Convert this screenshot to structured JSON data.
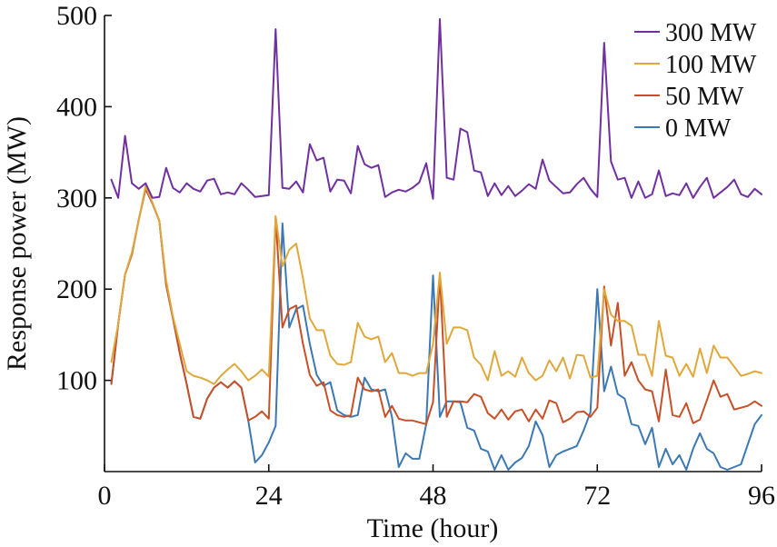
{
  "chart_data": {
    "type": "line",
    "title": "",
    "xlabel": "Time (hour)",
    "ylabel": "Response power (MW)",
    "xlim": [
      0,
      96
    ],
    "ylim": [
      0,
      500
    ],
    "xticks": [
      0,
      24,
      48,
      72,
      96
    ],
    "yticks": [
      100,
      200,
      300,
      400,
      500
    ],
    "grid": false,
    "legend_position": "top-right",
    "series": [
      {
        "name": "300 MW",
        "color": "#7030a0",
        "x": [
          1,
          2,
          3,
          4,
          5,
          6,
          7,
          8,
          9,
          10,
          11,
          12,
          13,
          14,
          15,
          16,
          17,
          18,
          19,
          20,
          21,
          22,
          23,
          24,
          25,
          26,
          27,
          28,
          29,
          30,
          31,
          32,
          33,
          34,
          35,
          36,
          37,
          38,
          39,
          40,
          41,
          42,
          43,
          44,
          45,
          46,
          47,
          48,
          49,
          50,
          51,
          52,
          53,
          54,
          55,
          56,
          57,
          58,
          59,
          60,
          61,
          62,
          63,
          64,
          65,
          66,
          67,
          68,
          69,
          70,
          71,
          72,
          73,
          74,
          75,
          76,
          77,
          78,
          79,
          80,
          81,
          82,
          83,
          84,
          85,
          86,
          87,
          88,
          89,
          90,
          91,
          92,
          93,
          94,
          95,
          96
        ],
        "values": [
          320,
          300,
          368,
          316,
          310,
          316,
          300,
          301,
          333,
          311,
          306,
          316,
          310,
          307,
          319,
          321,
          304,
          306,
          304,
          316,
          309,
          301,
          302,
          303,
          485,
          311,
          310,
          318,
          306,
          359,
          341,
          344,
          307,
          320,
          319,
          305,
          357,
          337,
          333,
          336,
          301,
          306,
          309,
          307,
          311,
          317,
          338,
          299,
          496,
          322,
          320,
          376,
          372,
          330,
          328,
          302,
          316,
          303,
          313,
          302,
          308,
          315,
          310,
          342,
          319,
          312,
          305,
          306,
          315,
          322,
          310,
          301,
          470,
          340,
          320,
          322,
          300,
          318,
          300,
          304,
          330,
          302,
          305,
          303,
          316,
          300,
          312,
          322,
          300,
          306,
          312,
          320,
          304,
          301,
          310,
          304
        ]
      },
      {
        "name": "100 MW",
        "color": "#e0a83a",
        "x": [
          1,
          2,
          3,
          4,
          5,
          6,
          7,
          8,
          9,
          10,
          11,
          12,
          13,
          14,
          15,
          16,
          17,
          18,
          19,
          20,
          21,
          22,
          23,
          24,
          25,
          26,
          27,
          28,
          29,
          30,
          31,
          32,
          33,
          34,
          35,
          36,
          37,
          38,
          39,
          40,
          41,
          42,
          43,
          44,
          45,
          46,
          47,
          48,
          49,
          50,
          51,
          52,
          53,
          54,
          55,
          56,
          57,
          58,
          59,
          60,
          61,
          62,
          63,
          64,
          65,
          66,
          67,
          68,
          69,
          70,
          71,
          72,
          73,
          74,
          75,
          76,
          77,
          78,
          79,
          80,
          81,
          82,
          83,
          84,
          85,
          86,
          87,
          88,
          89,
          90,
          91,
          92,
          93,
          94,
          95,
          96
        ],
        "values": [
          120,
          162,
          216,
          240,
          275,
          313,
          295,
          275,
          210,
          170,
          140,
          110,
          105,
          103,
          100,
          96,
          105,
          112,
          118,
          110,
          100,
          105,
          112,
          104,
          280,
          225,
          243,
          250,
          212,
          168,
          155,
          155,
          127,
          118,
          117,
          120,
          163,
          148,
          145,
          148,
          120,
          130,
          108,
          108,
          105,
          108,
          108,
          140,
          218,
          140,
          158,
          158,
          155,
          125,
          117,
          100,
          132,
          105,
          110,
          104,
          125,
          108,
          100,
          105,
          122,
          110,
          125,
          102,
          128,
          127,
          103,
          105,
          200,
          172,
          165,
          165,
          160,
          128,
          128,
          105,
          165,
          127,
          125,
          105,
          118,
          104,
          135,
          108,
          138,
          125,
          125,
          115,
          105,
          107,
          110,
          108
        ]
      },
      {
        "name": "50 MW",
        "color": "#c85028",
        "x": [
          1,
          2,
          3,
          4,
          5,
          6,
          7,
          8,
          9,
          10,
          11,
          12,
          13,
          14,
          15,
          16,
          17,
          18,
          19,
          20,
          21,
          22,
          23,
          24,
          25,
          26,
          27,
          28,
          29,
          30,
          31,
          32,
          33,
          34,
          35,
          36,
          37,
          38,
          39,
          40,
          41,
          42,
          43,
          44,
          45,
          46,
          47,
          48,
          49,
          50,
          51,
          52,
          53,
          54,
          55,
          56,
          57,
          58,
          59,
          60,
          61,
          62,
          63,
          64,
          65,
          66,
          67,
          68,
          69,
          70,
          71,
          72,
          73,
          74,
          75,
          76,
          77,
          78,
          79,
          80,
          81,
          82,
          83,
          84,
          85,
          86,
          87,
          88,
          89,
          90,
          91,
          92,
          93,
          94,
          95,
          96
        ],
        "values": [
          96,
          162,
          216,
          238,
          276,
          310,
          294,
          275,
          205,
          168,
          130,
          96,
          60,
          58,
          80,
          92,
          98,
          92,
          99,
          92,
          56,
          60,
          66,
          58,
          279,
          158,
          178,
          182,
          140,
          106,
          94,
          98,
          67,
          62,
          60,
          62,
          103,
          90,
          88,
          90,
          60,
          72,
          58,
          56,
          56,
          54,
          52,
          76,
          215,
          60,
          77,
          77,
          76,
          85,
          82,
          64,
          58,
          68,
          57,
          66,
          68,
          55,
          68,
          58,
          78,
          75,
          54,
          58,
          65,
          66,
          60,
          70,
          203,
          138,
          185,
          105,
          120,
          100,
          90,
          88,
          55,
          112,
          62,
          60,
          75,
          53,
          57,
          78,
          100,
          82,
          85,
          68,
          70,
          72,
          77,
          72
        ]
      },
      {
        "name": "0 MW",
        "color": "#3c78b4",
        "x": [
          1,
          2,
          3,
          4,
          5,
          6,
          7,
          8,
          9,
          10,
          11,
          12,
          13,
          14,
          15,
          16,
          17,
          18,
          19,
          20,
          21,
          22,
          23,
          24,
          25,
          26,
          27,
          28,
          29,
          30,
          31,
          32,
          33,
          34,
          35,
          36,
          37,
          38,
          39,
          40,
          41,
          42,
          43,
          44,
          45,
          46,
          47,
          48,
          49,
          50,
          51,
          52,
          53,
          54,
          55,
          56,
          57,
          58,
          59,
          60,
          61,
          62,
          63,
          64,
          65,
          66,
          67,
          68,
          69,
          70,
          71,
          72,
          73,
          74,
          75,
          76,
          77,
          78,
          79,
          80,
          81,
          82,
          83,
          84,
          85,
          86,
          87,
          88,
          89,
          90,
          91,
          92,
          93,
          94,
          95,
          96
        ],
        "values": [
          96,
          162,
          216,
          238,
          276,
          310,
          294,
          275,
          205,
          168,
          130,
          96,
          60,
          58,
          80,
          92,
          98,
          92,
          99,
          92,
          56,
          10,
          18,
          32,
          50,
          272,
          158,
          178,
          182,
          140,
          106,
          94,
          98,
          67,
          62,
          60,
          62,
          103,
          90,
          88,
          90,
          60,
          5,
          20,
          14,
          14,
          52,
          215,
          60,
          77,
          77,
          76,
          48,
          45,
          25,
          22,
          2,
          18,
          2,
          10,
          15,
          28,
          55,
          40,
          5,
          18,
          22,
          25,
          28,
          45,
          65,
          200,
          88,
          115,
          85,
          80,
          52,
          50,
          30,
          48,
          5,
          25,
          8,
          18,
          2,
          25,
          42,
          25,
          20,
          5,
          2,
          5,
          8,
          30,
          52,
          62
        ]
      }
    ]
  }
}
